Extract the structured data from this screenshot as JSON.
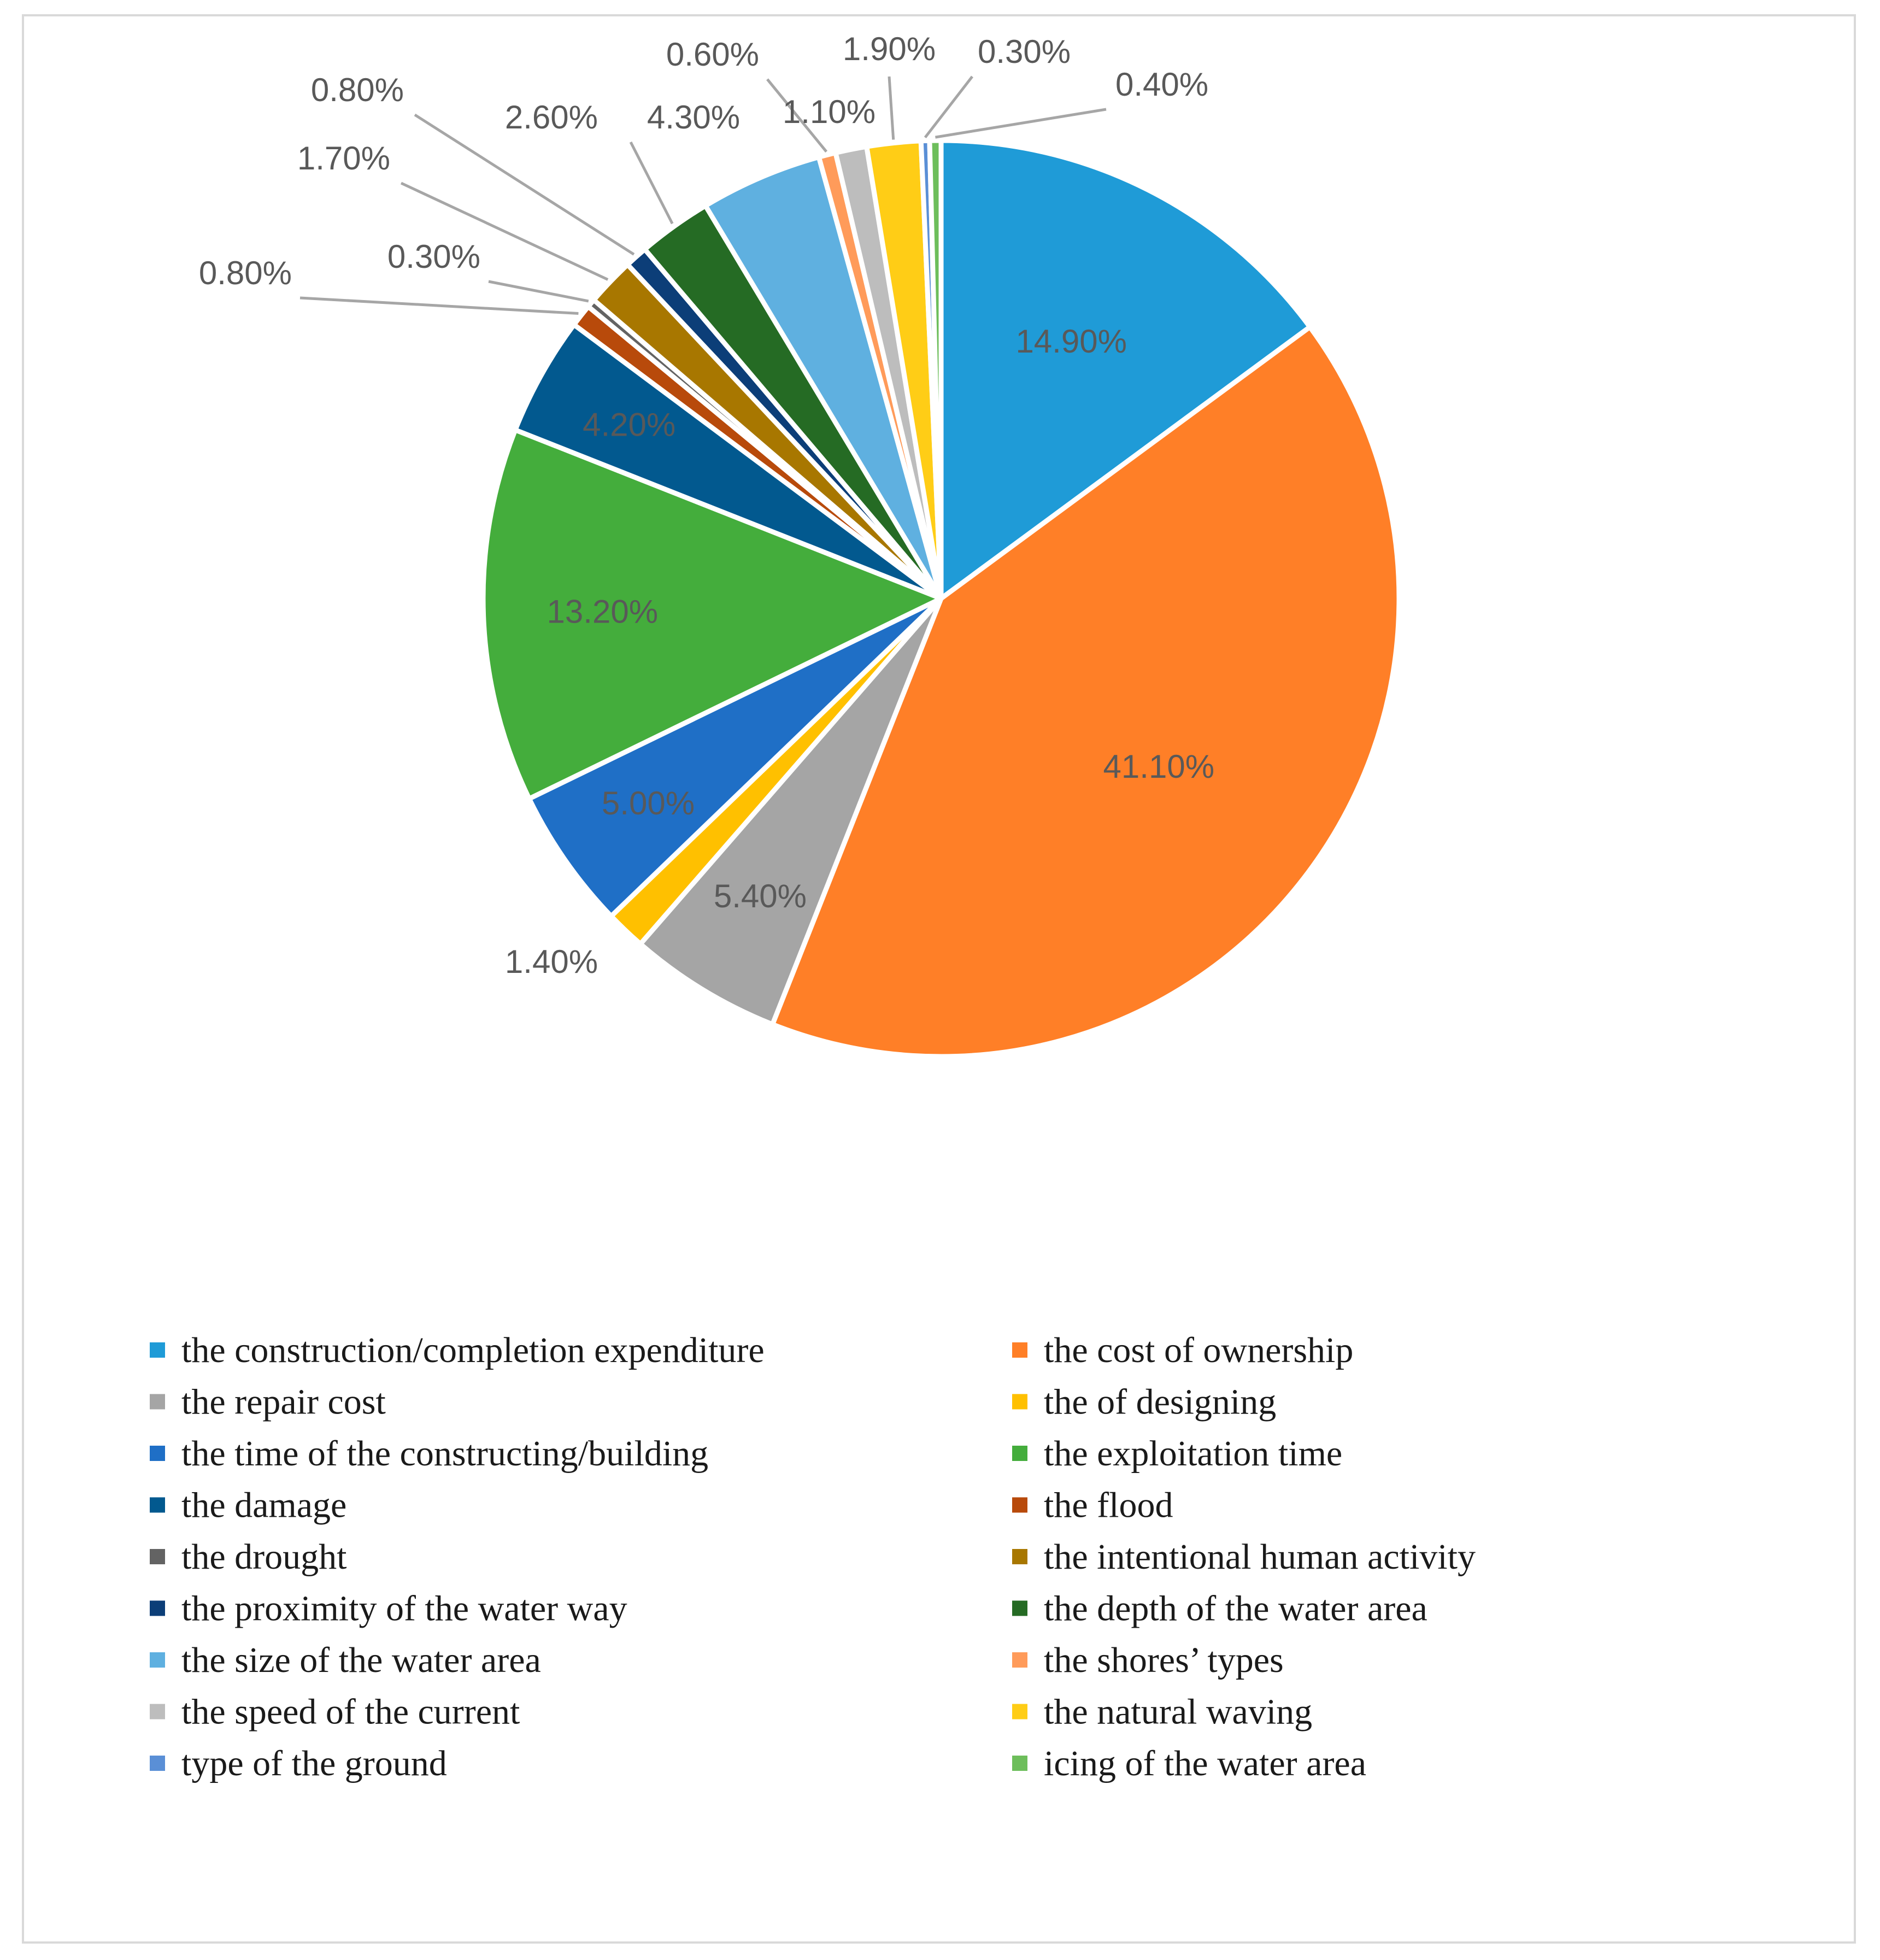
{
  "chart_data": {
    "type": "pie",
    "title": "",
    "start_angle_deg": 0,
    "direction": "clockwise",
    "legend_position": "bottom",
    "slices": [
      {
        "label": "the construction/completion expenditure",
        "value": 14.9,
        "value_label": "14.90%",
        "color": "#1f9bd7"
      },
      {
        "label": "the cost of ownership",
        "value": 41.1,
        "value_label": "41.10%",
        "color": "#ff7f27"
      },
      {
        "label": "the repair cost",
        "value": 5.4,
        "value_label": "5.40%",
        "color": "#a5a5a5"
      },
      {
        "label": "the of designing",
        "value": 1.4,
        "value_label": "1.40%",
        "color": "#ffc000"
      },
      {
        "label": "the time of the constructing/building",
        "value": 5.0,
        "value_label": "5.00%",
        "color": "#1f6fc6"
      },
      {
        "label": "the exploitation time",
        "value": 13.2,
        "value_label": "13.20%",
        "color": "#44ad3c"
      },
      {
        "label": "the damage",
        "value": 4.2,
        "value_label": "4.20%",
        "color": "#02598f"
      },
      {
        "label": "the flood",
        "value": 0.8,
        "value_label": "0.80%",
        "color": "#b84a0b"
      },
      {
        "label": "the drought",
        "value": 0.3,
        "value_label": "0.30%",
        "color": "#636363"
      },
      {
        "label": "the intentional human activity",
        "value": 1.7,
        "value_label": "1.70%",
        "color": "#a87700"
      },
      {
        "label": "the proximity of the water way",
        "value": 0.8,
        "value_label": "0.80%",
        "color": "#0c3e78"
      },
      {
        "label": "the depth of the water area",
        "value": 2.6,
        "value_label": "2.60%",
        "color": "#256b24"
      },
      {
        "label": "the size of the water area",
        "value": 4.3,
        "value_label": "4.30%",
        "color": "#5fb0e0"
      },
      {
        "label": "the shores’ types",
        "value": 0.6,
        "value_label": "0.60%",
        "color": "#ff9b5a"
      },
      {
        "label": "the speed of the current",
        "value": 1.1,
        "value_label": "1.10%",
        "color": "#bdbdbd"
      },
      {
        "label": "the natural waving",
        "value": 1.9,
        "value_label": "1.90%",
        "color": "#ffcd16"
      },
      {
        "label": "type of the ground",
        "value": 0.3,
        "value_label": "0.30%",
        "color": "#5a8fd6"
      },
      {
        "label": "icing of the water area",
        "value": 0.4,
        "value_label": "0.40%",
        "color": "#6dbe5b"
      }
    ]
  }
}
